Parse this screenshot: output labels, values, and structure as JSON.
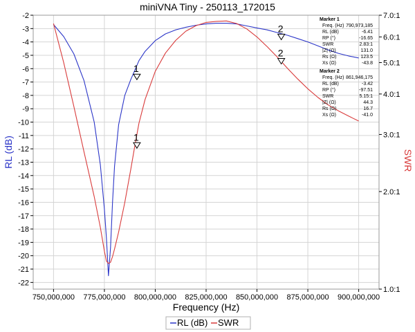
{
  "chart_data": {
    "type": "line",
    "title": "miniVNA Tiny - 250113_172015",
    "xlabel": "Frequency (Hz)",
    "ylabel": "RL (dB)",
    "y2label": "SWR",
    "xlim": [
      740000000,
      910000000
    ],
    "ylim": [
      -22.5,
      -2
    ],
    "y2lim": [
      1,
      7
    ],
    "y2scale": "log",
    "x_ticks": [
      750000000,
      775000000,
      800000000,
      825000000,
      850000000,
      875000000,
      900000000
    ],
    "x_tick_labels": [
      "750,000,000",
      "775,000,000",
      "800,000,000",
      "825,000,000",
      "850,000,000",
      "875,000,000",
      "900,000,000"
    ],
    "y_ticks": [
      -2,
      -3,
      -4,
      -5,
      -6,
      -7,
      -8,
      -9,
      -10,
      -11,
      -12,
      -13,
      -14,
      -15,
      -16,
      -17,
      -18,
      -19,
      -20,
      -21,
      -22
    ],
    "y2_ticks": [
      1,
      2,
      3,
      4,
      5,
      6,
      7
    ],
    "y2_tick_labels": [
      "1.0:1",
      "2.0:1",
      "3.0:1",
      "4.0:1",
      "5.0:1",
      "6.0:1",
      "7.0:1"
    ],
    "grid": true,
    "legend": "bottom-center",
    "series": [
      {
        "name": "RL (dB)",
        "axis": "left",
        "color": "#2b35c8",
        "x": [
          750000000,
          755000000,
          760000000,
          765000000,
          770000000,
          773000000,
          775000000,
          776000000,
          777000000,
          778000000,
          779000000,
          780000000,
          782000000,
          785000000,
          788000000,
          790000000,
          792000000,
          795000000,
          800000000,
          805000000,
          810000000,
          815000000,
          820000000,
          825000000,
          830000000,
          835000000,
          840000000,
          845000000,
          850000000,
          855000000,
          860000000,
          865000000,
          870000000,
          875000000,
          880000000,
          885000000,
          890000000,
          895000000,
          900000000
        ],
        "y": [
          -2.7,
          -3.6,
          -4.9,
          -6.9,
          -10.0,
          -13.2,
          -16.5,
          -18.7,
          -21.5,
          -19.4,
          -16.0,
          -13.3,
          -10.2,
          -8.0,
          -6.8,
          -6.1,
          -5.4,
          -4.7,
          -3.9,
          -3.4,
          -3.1,
          -2.9,
          -2.75,
          -2.65,
          -2.6,
          -2.6,
          -2.65,
          -2.8,
          -2.95,
          -3.1,
          -3.3,
          -3.5,
          -3.75,
          -4.0,
          -4.3,
          -4.6,
          -4.85,
          -5.05,
          -5.2
        ]
      },
      {
        "name": "SWR",
        "axis": "right",
        "color": "#d93b3b",
        "x": [
          750000000,
          755000000,
          760000000,
          765000000,
          770000000,
          773000000,
          775000000,
          776000000,
          777000000,
          778000000,
          779000000,
          780000000,
          782000000,
          785000000,
          788000000,
          790000000,
          792000000,
          795000000,
          800000000,
          805000000,
          810000000,
          815000000,
          820000000,
          825000000,
          830000000,
          835000000,
          840000000,
          845000000,
          850000000,
          855000000,
          860000000,
          865000000,
          870000000,
          875000000,
          880000000,
          885000000,
          890000000,
          895000000,
          900000000
        ],
        "y": [
          6.6,
          5.0,
          3.66,
          2.65,
          1.93,
          1.55,
          1.31,
          1.22,
          1.2,
          1.21,
          1.26,
          1.33,
          1.5,
          1.85,
          2.35,
          2.78,
          3.25,
          3.85,
          4.7,
          5.35,
          5.85,
          6.25,
          6.5,
          6.65,
          6.7,
          6.72,
          6.6,
          6.35,
          6.0,
          5.6,
          5.2,
          4.8,
          4.45,
          4.15,
          3.9,
          3.7,
          3.55,
          3.42,
          3.3
        ]
      }
    ],
    "markers_on_plot": [
      {
        "label": "1",
        "series": "RL (dB)",
        "x": 790973185,
        "y": -6.41
      },
      {
        "label": "1",
        "series": "SWR",
        "x": 790973185,
        "y": 2.83
      },
      {
        "label": "2",
        "series": "RL (dB)",
        "x": 861946175,
        "y": -3.42
      },
      {
        "label": "2",
        "series": "SWR",
        "x": 861946175,
        "y": 5.15
      }
    ],
    "marker_panels": [
      {
        "title": "Marker 1",
        "rows": [
          {
            "label": "Freq. (Hz)",
            "value": "790,973,185"
          },
          {
            "label": "RL (dB)",
            "value": "-6.41"
          },
          {
            "label": "RP (°)",
            "value": "-16.65"
          },
          {
            "label": "SWR",
            "value": "2.83:1"
          },
          {
            "label": "|Z| (Ω)",
            "value": "131.0"
          },
          {
            "label": "Rs (Ω)",
            "value": "123.5"
          },
          {
            "label": "Xs (Ω)",
            "value": "-43.8"
          }
        ]
      },
      {
        "title": "Marker 2",
        "rows": [
          {
            "label": "Freq. (Hz)",
            "value": "861,946,175"
          },
          {
            "label": "RL (dB)",
            "value": "-3.42"
          },
          {
            "label": "RP (°)",
            "value": "-97.51"
          },
          {
            "label": "SWR",
            "value": "5.15:1"
          },
          {
            "label": "|Z| (Ω)",
            "value": "44.3"
          },
          {
            "label": "Rs (Ω)",
            "value": "16.7"
          },
          {
            "label": "Xs (Ω)",
            "value": "-41.0"
          }
        ]
      }
    ]
  }
}
